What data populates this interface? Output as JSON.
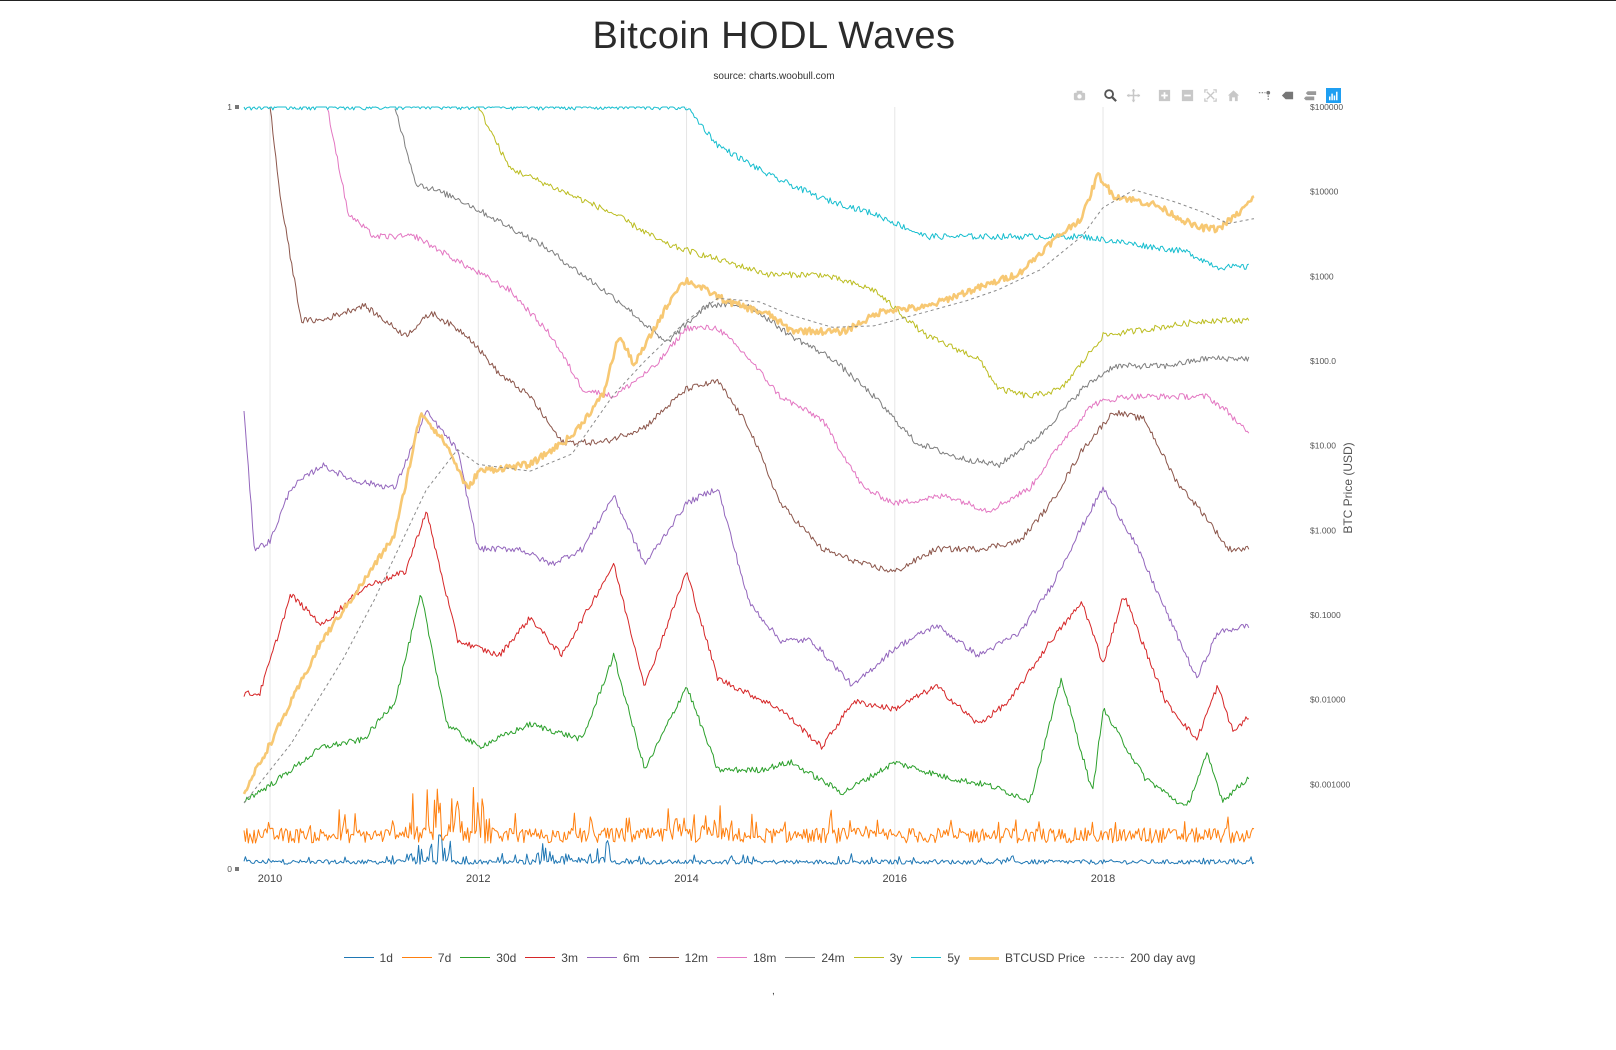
{
  "title": "Bitcoin HODL Waves",
  "subtitle": "source: charts.woobull.com",
  "modebar": [
    {
      "name": "camera-icon"
    },
    {
      "name": "zoom-icon",
      "active": true
    },
    {
      "name": "pan-icon"
    },
    {
      "name": "zoom-in-icon"
    },
    {
      "name": "zoom-out-icon"
    },
    {
      "name": "autoscale-icon"
    },
    {
      "name": "home-icon"
    },
    {
      "name": "spike-lines-icon"
    },
    {
      "name": "hover-closest-icon"
    },
    {
      "name": "hover-compare-icon"
    },
    {
      "name": "plotly-logo-icon",
      "active": true
    }
  ],
  "chart_data": {
    "type": "line",
    "title": "Bitcoin HODL Waves",
    "subtitle": "source: charts.woobull.com",
    "x_ticks": [
      "2010",
      "2012",
      "2014",
      "2016",
      "2018"
    ],
    "x_range": [
      2009.75,
      2019.45
    ],
    "y_left": {
      "ticks": [
        "1",
        "0"
      ],
      "range": [
        0,
        1
      ]
    },
    "y_right": {
      "label": "BTC Price (USD)",
      "scale": "log",
      "range": [
        0.0001,
        100000
      ],
      "ticks": [
        "$100000",
        "$10000",
        "$1000",
        "$100.0",
        "$10.00",
        "$1.000",
        "$0.1000",
        "$0.01000",
        "$0.001000"
      ]
    },
    "grid": "vertical",
    "legend_position": "bottom",
    "series": [
      {
        "name": "1d",
        "color": "#1f77b4",
        "axis": "left",
        "kind": "noisy",
        "base": 0.008,
        "amp": 0.006,
        "spikes": [
          [
            2011.6,
            0.05
          ],
          [
            2013.3,
            0.035
          ],
          [
            2012.6,
            0.03
          ]
        ]
      },
      {
        "name": "7d",
        "color": "#ff7f0e",
        "axis": "left",
        "kind": "noisy",
        "base": 0.04,
        "amp": 0.02,
        "spikes": [
          [
            2011.5,
            0.11
          ],
          [
            2011.9,
            0.07
          ],
          [
            2014.1,
            0.04
          ]
        ]
      },
      {
        "name": "30d",
        "color": "#2ca02c",
        "axis": "left",
        "values": [
          [
            2009.75,
            0.09
          ],
          [
            2010.0,
            0.11
          ],
          [
            2010.5,
            0.16
          ],
          [
            2010.9,
            0.17
          ],
          [
            2011.2,
            0.22
          ],
          [
            2011.45,
            0.36
          ],
          [
            2011.7,
            0.19
          ],
          [
            2012.0,
            0.16
          ],
          [
            2012.5,
            0.19
          ],
          [
            2013.0,
            0.17
          ],
          [
            2013.3,
            0.28
          ],
          [
            2013.6,
            0.13
          ],
          [
            2014.0,
            0.24
          ],
          [
            2014.3,
            0.13
          ],
          [
            2014.7,
            0.13
          ],
          [
            2015.0,
            0.14
          ],
          [
            2015.5,
            0.1
          ],
          [
            2016.0,
            0.14
          ],
          [
            2016.5,
            0.12
          ],
          [
            2016.9,
            0.11
          ],
          [
            2017.3,
            0.09
          ],
          [
            2017.6,
            0.25
          ],
          [
            2017.9,
            0.1
          ],
          [
            2018.0,
            0.21
          ],
          [
            2018.4,
            0.12
          ],
          [
            2018.8,
            0.08
          ],
          [
            2019.0,
            0.15
          ],
          [
            2019.15,
            0.09
          ],
          [
            2019.4,
            0.12
          ]
        ]
      },
      {
        "name": "3m",
        "color": "#d62728",
        "axis": "left",
        "values": [
          [
            2009.75,
            0.23
          ],
          [
            2009.9,
            0.23
          ],
          [
            2010.2,
            0.36
          ],
          [
            2010.5,
            0.32
          ],
          [
            2010.9,
            0.37
          ],
          [
            2011.3,
            0.39
          ],
          [
            2011.5,
            0.47
          ],
          [
            2011.8,
            0.3
          ],
          [
            2012.2,
            0.28
          ],
          [
            2012.5,
            0.33
          ],
          [
            2012.8,
            0.28
          ],
          [
            2013.3,
            0.4
          ],
          [
            2013.6,
            0.24
          ],
          [
            2014.0,
            0.39
          ],
          [
            2014.3,
            0.25
          ],
          [
            2014.6,
            0.23
          ],
          [
            2014.9,
            0.21
          ],
          [
            2015.3,
            0.16
          ],
          [
            2015.6,
            0.22
          ],
          [
            2016.0,
            0.21
          ],
          [
            2016.4,
            0.24
          ],
          [
            2016.8,
            0.19
          ],
          [
            2017.1,
            0.22
          ],
          [
            2017.5,
            0.3
          ],
          [
            2017.8,
            0.35
          ],
          [
            2018.0,
            0.27
          ],
          [
            2018.2,
            0.36
          ],
          [
            2018.6,
            0.22
          ],
          [
            2018.9,
            0.17
          ],
          [
            2019.1,
            0.24
          ],
          [
            2019.25,
            0.18
          ],
          [
            2019.4,
            0.2
          ]
        ]
      },
      {
        "name": "6m",
        "color": "#9467bd",
        "axis": "left",
        "values": [
          [
            2009.75,
            0.6
          ],
          [
            2009.85,
            0.42
          ],
          [
            2010.0,
            0.43
          ],
          [
            2010.2,
            0.5
          ],
          [
            2010.5,
            0.53
          ],
          [
            2010.8,
            0.51
          ],
          [
            2011.2,
            0.5
          ],
          [
            2011.5,
            0.6
          ],
          [
            2011.8,
            0.55
          ],
          [
            2012.0,
            0.42
          ],
          [
            2012.4,
            0.42
          ],
          [
            2012.7,
            0.4
          ],
          [
            2013.0,
            0.42
          ],
          [
            2013.3,
            0.49
          ],
          [
            2013.6,
            0.4
          ],
          [
            2014.0,
            0.48
          ],
          [
            2014.3,
            0.5
          ],
          [
            2014.6,
            0.35
          ],
          [
            2014.9,
            0.3
          ],
          [
            2015.2,
            0.3
          ],
          [
            2015.6,
            0.24
          ],
          [
            2016.0,
            0.29
          ],
          [
            2016.4,
            0.32
          ],
          [
            2016.8,
            0.28
          ],
          [
            2017.2,
            0.31
          ],
          [
            2017.5,
            0.37
          ],
          [
            2017.8,
            0.45
          ],
          [
            2018.0,
            0.5
          ],
          [
            2018.3,
            0.43
          ],
          [
            2018.6,
            0.34
          ],
          [
            2018.9,
            0.25
          ],
          [
            2019.1,
            0.31
          ],
          [
            2019.4,
            0.32
          ]
        ]
      },
      {
        "name": "12m",
        "color": "#8c564b",
        "axis": "left",
        "values": [
          [
            2010.0,
            1.0
          ],
          [
            2010.1,
            0.88
          ],
          [
            2010.3,
            0.72
          ],
          [
            2010.5,
            0.72
          ],
          [
            2010.9,
            0.74
          ],
          [
            2011.3,
            0.7
          ],
          [
            2011.55,
            0.73
          ],
          [
            2011.9,
            0.7
          ],
          [
            2012.2,
            0.65
          ],
          [
            2012.5,
            0.62
          ],
          [
            2012.8,
            0.56
          ],
          [
            2013.2,
            0.56
          ],
          [
            2013.6,
            0.58
          ],
          [
            2014.0,
            0.63
          ],
          [
            2014.3,
            0.64
          ],
          [
            2014.6,
            0.58
          ],
          [
            2014.9,
            0.48
          ],
          [
            2015.3,
            0.42
          ],
          [
            2015.7,
            0.4
          ],
          [
            2016.0,
            0.39
          ],
          [
            2016.4,
            0.42
          ],
          [
            2016.8,
            0.42
          ],
          [
            2017.2,
            0.43
          ],
          [
            2017.5,
            0.48
          ],
          [
            2017.8,
            0.55
          ],
          [
            2018.1,
            0.6
          ],
          [
            2018.4,
            0.59
          ],
          [
            2018.7,
            0.51
          ],
          [
            2019.0,
            0.46
          ],
          [
            2019.2,
            0.42
          ],
          [
            2019.4,
            0.42
          ]
        ]
      },
      {
        "name": "18m",
        "color": "#e377c2",
        "axis": "left",
        "values": [
          [
            2010.55,
            1.0
          ],
          [
            2010.75,
            0.86
          ],
          [
            2011.0,
            0.83
          ],
          [
            2011.4,
            0.83
          ],
          [
            2011.9,
            0.79
          ],
          [
            2012.3,
            0.76
          ],
          [
            2012.7,
            0.7
          ],
          [
            2013.0,
            0.63
          ],
          [
            2013.3,
            0.62
          ],
          [
            2013.7,
            0.66
          ],
          [
            2014.0,
            0.71
          ],
          [
            2014.3,
            0.71
          ],
          [
            2014.6,
            0.67
          ],
          [
            2014.9,
            0.62
          ],
          [
            2015.3,
            0.59
          ],
          [
            2015.7,
            0.5
          ],
          [
            2016.0,
            0.48
          ],
          [
            2016.5,
            0.49
          ],
          [
            2016.9,
            0.47
          ],
          [
            2017.3,
            0.5
          ],
          [
            2017.6,
            0.56
          ],
          [
            2017.9,
            0.61
          ],
          [
            2018.2,
            0.62
          ],
          [
            2018.6,
            0.62
          ],
          [
            2019.0,
            0.62
          ],
          [
            2019.2,
            0.6
          ],
          [
            2019.4,
            0.57
          ]
        ]
      },
      {
        "name": "24m",
        "color": "#7f7f7f",
        "axis": "left",
        "values": [
          [
            2011.2,
            1.0
          ],
          [
            2011.4,
            0.9
          ],
          [
            2011.8,
            0.88
          ],
          [
            2012.2,
            0.85
          ],
          [
            2012.6,
            0.82
          ],
          [
            2013.0,
            0.78
          ],
          [
            2013.4,
            0.74
          ],
          [
            2013.8,
            0.69
          ],
          [
            2014.2,
            0.74
          ],
          [
            2014.6,
            0.74
          ],
          [
            2015.0,
            0.7
          ],
          [
            2015.4,
            0.67
          ],
          [
            2015.8,
            0.62
          ],
          [
            2016.2,
            0.56
          ],
          [
            2016.6,
            0.54
          ],
          [
            2017.0,
            0.53
          ],
          [
            2017.4,
            0.57
          ],
          [
            2017.8,
            0.63
          ],
          [
            2018.1,
            0.66
          ],
          [
            2018.6,
            0.66
          ],
          [
            2019.0,
            0.67
          ],
          [
            2019.4,
            0.67
          ]
        ]
      },
      {
        "name": "3y",
        "color": "#bcbd22",
        "axis": "left",
        "values": [
          [
            2012.0,
            1.0
          ],
          [
            2012.3,
            0.92
          ],
          [
            2012.8,
            0.89
          ],
          [
            2013.3,
            0.86
          ],
          [
            2013.8,
            0.82
          ],
          [
            2014.3,
            0.8
          ],
          [
            2014.8,
            0.78
          ],
          [
            2015.3,
            0.78
          ],
          [
            2015.8,
            0.76
          ],
          [
            2016.3,
            0.7
          ],
          [
            2016.8,
            0.67
          ],
          [
            2017.0,
            0.63
          ],
          [
            2017.3,
            0.62
          ],
          [
            2017.6,
            0.63
          ],
          [
            2018.0,
            0.7
          ],
          [
            2018.5,
            0.71
          ],
          [
            2019.0,
            0.72
          ],
          [
            2019.4,
            0.72
          ]
        ]
      },
      {
        "name": "5y",
        "color": "#17becf",
        "axis": "left",
        "values": [
          [
            2009.75,
            1.0
          ],
          [
            2014.0,
            1.0
          ],
          [
            2014.3,
            0.95
          ],
          [
            2014.8,
            0.91
          ],
          [
            2015.3,
            0.88
          ],
          [
            2015.8,
            0.86
          ],
          [
            2016.3,
            0.83
          ],
          [
            2016.6,
            0.83
          ],
          [
            2017.3,
            0.83
          ],
          [
            2017.8,
            0.83
          ],
          [
            2018.3,
            0.82
          ],
          [
            2018.8,
            0.81
          ],
          [
            2019.1,
            0.79
          ],
          [
            2019.4,
            0.79
          ]
        ]
      },
      {
        "name": "BTCUSD Price",
        "color": "#f7c873",
        "axis": "right",
        "values": [
          [
            2009.75,
            0.0008
          ],
          [
            2010.0,
            0.003
          ],
          [
            2010.5,
            0.05
          ],
          [
            2010.9,
            0.25
          ],
          [
            2011.2,
            0.9
          ],
          [
            2011.45,
            25
          ],
          [
            2011.7,
            10
          ],
          [
            2011.9,
            3
          ],
          [
            2012.0,
            5
          ],
          [
            2012.5,
            6
          ],
          [
            2012.9,
            13
          ],
          [
            2013.2,
            40
          ],
          [
            2013.35,
            200
          ],
          [
            2013.5,
            90
          ],
          [
            2013.9,
            700
          ],
          [
            2014.0,
            900
          ],
          [
            2014.4,
            500
          ],
          [
            2014.8,
            350
          ],
          [
            2015.0,
            230
          ],
          [
            2015.5,
            220
          ],
          [
            2015.9,
            400
          ],
          [
            2016.3,
            430
          ],
          [
            2016.6,
            600
          ],
          [
            2016.9,
            800
          ],
          [
            2017.2,
            1100
          ],
          [
            2017.5,
            2500
          ],
          [
            2017.8,
            5000
          ],
          [
            2017.95,
            16000
          ],
          [
            2018.1,
            9000
          ],
          [
            2018.5,
            7000
          ],
          [
            2018.9,
            3800
          ],
          [
            2019.1,
            3600
          ],
          [
            2019.3,
            5500
          ],
          [
            2019.45,
            8500
          ]
        ]
      },
      {
        "name": "200 day avg",
        "color": "#8a8a8a",
        "axis": "right",
        "dashed": true,
        "values": [
          [
            2009.75,
            0.0006
          ],
          [
            2010.2,
            0.003
          ],
          [
            2010.7,
            0.03
          ],
          [
            2011.0,
            0.15
          ],
          [
            2011.5,
            3
          ],
          [
            2011.8,
            9
          ],
          [
            2012.0,
            6
          ],
          [
            2012.5,
            5
          ],
          [
            2012.9,
            8
          ],
          [
            2013.3,
            40
          ],
          [
            2013.6,
            100
          ],
          [
            2014.0,
            300
          ],
          [
            2014.3,
            550
          ],
          [
            2014.7,
            500
          ],
          [
            2015.0,
            350
          ],
          [
            2015.4,
            250
          ],
          [
            2015.8,
            260
          ],
          [
            2016.3,
            380
          ],
          [
            2016.7,
            520
          ],
          [
            2017.0,
            700
          ],
          [
            2017.4,
            1200
          ],
          [
            2017.8,
            3000
          ],
          [
            2018.0,
            6500
          ],
          [
            2018.3,
            10500
          ],
          [
            2018.7,
            7500
          ],
          [
            2019.0,
            5500
          ],
          [
            2019.2,
            4200
          ],
          [
            2019.45,
            4800
          ]
        ]
      }
    ]
  }
}
